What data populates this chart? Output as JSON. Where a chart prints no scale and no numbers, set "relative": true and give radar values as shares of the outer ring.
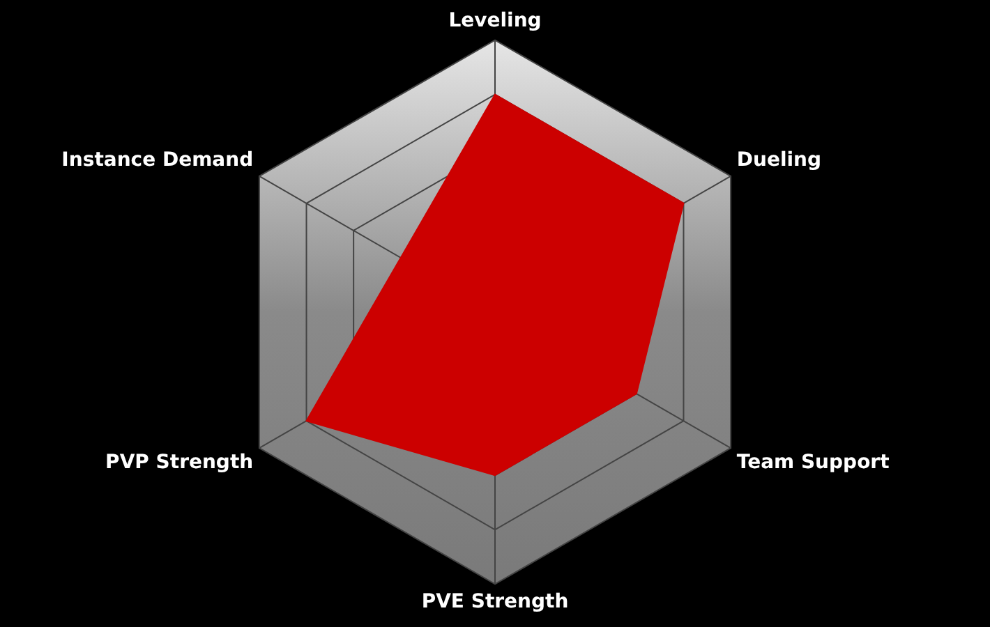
{
  "chart_data": {
    "type": "radar",
    "relative": true,
    "grid": true,
    "legend": false,
    "categories": [
      "Leveling",
      "Dueling",
      "Team Support",
      "PVE Strength",
      "PVP Strength",
      "Instance Demand"
    ],
    "series": [
      {
        "color": "#cc0000",
        "values": [
          0.8,
          0.8,
          0.6,
          0.6,
          0.8,
          0.4
        ]
      }
    ]
  }
}
